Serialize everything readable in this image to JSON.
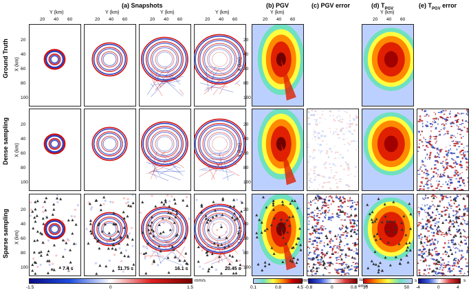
{
  "headers": {
    "snapshots": "(a) Snapshots",
    "pgv": "(b) PGV",
    "pgv_error": "(c) PGV error",
    "tpgv_main": "(d) T",
    "tpgv_sub": "PGV",
    "tpgv_err_main": "(e) T",
    "tpgv_err_sub": "PGV",
    "tpgv_err_tail": " error"
  },
  "axis": {
    "y_label": "Y (km)",
    "x_label": "X (km)",
    "y_ticks": [
      "20",
      "40",
      "60"
    ],
    "x_ticks": [
      "20",
      "40",
      "60",
      "80",
      "100"
    ]
  },
  "rows": [
    "Ground Truth",
    "Dense sampling",
    "Sparse sampling"
  ],
  "times": [
    "7.4 s",
    "11.75 s",
    "16.1 s",
    "20.45 s"
  ],
  "colorbars": {
    "snap": {
      "ticks": [
        "-1.5",
        "0",
        "1.5"
      ],
      "unit": "mm/s",
      "colors": [
        "#0a0a8a",
        "#1f4fe0",
        "#ffffff",
        "#e02020",
        "#7a0000"
      ]
    },
    "pgv": {
      "ticks": [
        "0.1",
        "0.8",
        "4.5"
      ],
      "unit": "mm/s",
      "colors": [
        "#bcd0ff",
        "#6fe0c0",
        "#ffff40",
        "#ff8a00",
        "#d00000",
        "#700000"
      ]
    },
    "pgv_err": {
      "ticks": [
        "-0.8",
        "0",
        "0.8"
      ],
      "unit1": "log",
      "unit2": "error",
      "colors": [
        "#0a0a8a",
        "#4060e0",
        "#ffffff",
        "#e04040",
        "#7a0000"
      ]
    },
    "tpgv": {
      "ticks": [
        "10",
        "50"
      ],
      "unit": "s",
      "colors": [
        "#d00000",
        "#ff8a00",
        "#ffff40",
        "#6fe0c0",
        "#bcd0ff"
      ]
    },
    "tpgv_err": {
      "ticks": [
        "-4",
        "0",
        "4"
      ],
      "unit": "s",
      "colors": [
        "#0a0a8a",
        "#4060e0",
        "#ffffff",
        "#e04040",
        "#7a0000"
      ]
    }
  },
  "colors": {
    "red": "#d01010",
    "blue": "#1030c0",
    "dark_red": "#6a0000"
  }
}
